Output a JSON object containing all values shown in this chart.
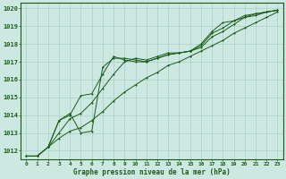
{
  "xlabel": "Graphe pression niveau de la mer (hPa)",
  "xlim": [
    -0.5,
    23.5
  ],
  "ylim": [
    1011.5,
    1020.3
  ],
  "yticks": [
    1012,
    1013,
    1014,
    1015,
    1016,
    1017,
    1018,
    1019,
    1020
  ],
  "xticks": [
    0,
    1,
    2,
    3,
    4,
    5,
    6,
    7,
    8,
    9,
    10,
    11,
    12,
    13,
    14,
    15,
    16,
    17,
    18,
    19,
    20,
    21,
    22,
    23
  ],
  "background_color": "#cce8e0",
  "grid_color": "#a8d0c8",
  "line_color": "#1a5c1a",
  "line1_x": [
    0,
    1,
    2,
    3,
    4,
    5,
    6,
    7,
    8,
    9,
    10,
    11,
    12,
    13,
    14,
    15,
    16,
    17,
    18,
    19,
    20,
    21,
    22,
    23
  ],
  "line1_y": [
    1011.7,
    1011.7,
    1012.2,
    1012.7,
    1013.1,
    1013.3,
    1013.7,
    1014.2,
    1014.8,
    1015.3,
    1015.7,
    1016.1,
    1016.4,
    1016.8,
    1017.0,
    1017.3,
    1017.6,
    1017.9,
    1018.2,
    1018.6,
    1018.9,
    1019.2,
    1019.5,
    1019.8
  ],
  "line2_x": [
    0,
    1,
    2,
    3,
    4,
    5,
    6,
    7,
    8,
    9,
    10,
    11,
    12,
    13,
    14,
    15,
    16,
    17,
    18,
    19,
    20,
    21,
    22,
    23
  ],
  "line2_y": [
    1011.7,
    1011.7,
    1012.2,
    1013.0,
    1013.8,
    1014.1,
    1014.7,
    1015.5,
    1016.3,
    1017.0,
    1017.2,
    1017.1,
    1017.3,
    1017.5,
    1017.5,
    1017.6,
    1017.8,
    1018.4,
    1018.7,
    1019.1,
    1019.5,
    1019.6,
    1019.8,
    1019.9
  ],
  "line3_x": [
    0,
    1,
    2,
    3,
    4,
    5,
    6,
    7,
    8,
    9,
    10,
    11,
    12,
    13,
    14,
    15,
    16,
    17,
    18,
    19,
    20,
    21,
    22,
    23
  ],
  "line3_y": [
    1011.7,
    1011.7,
    1012.2,
    1013.7,
    1014.0,
    1015.1,
    1015.2,
    1016.3,
    1017.3,
    1017.1,
    1017.0,
    1017.0,
    1017.2,
    1017.4,
    1017.5,
    1017.6,
    1017.9,
    1018.6,
    1018.9,
    1019.3,
    1019.5,
    1019.7,
    1019.8,
    1019.9
  ],
  "line4_x": [
    2,
    3,
    4,
    5,
    6,
    7,
    8,
    9,
    10,
    11,
    12,
    13,
    14,
    15,
    16,
    17,
    18,
    19,
    20,
    21,
    22,
    23
  ],
  "line4_y": [
    1012.2,
    1013.7,
    1014.1,
    1013.0,
    1013.1,
    1016.7,
    1017.2,
    1017.2,
    1017.1,
    1017.0,
    1017.2,
    1017.4,
    1017.5,
    1017.6,
    1018.0,
    1018.7,
    1019.2,
    1019.3,
    1019.6,
    1019.7,
    1019.8,
    1019.9
  ]
}
